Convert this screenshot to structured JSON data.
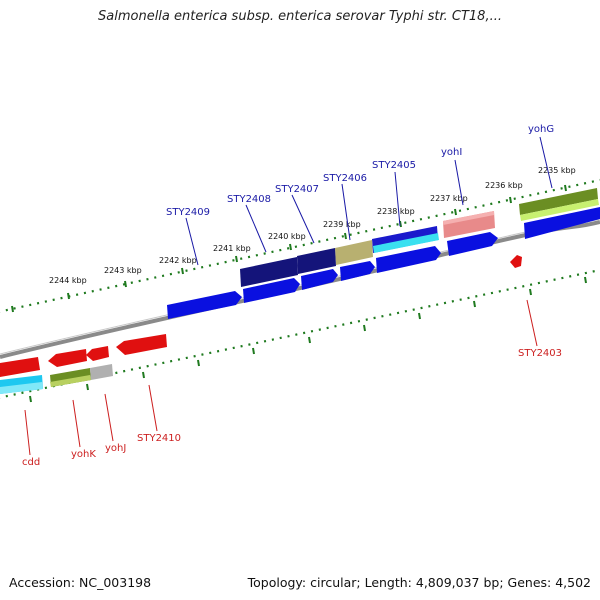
{
  "title": "Salmonella enterica subsp. enterica serovar Typhi str. CT18,...",
  "footer": {
    "accession": "Accession: NC_003198",
    "stats": "Topology: circular; Length: 4,809,037 bp; Genes: 4,502"
  },
  "colors": {
    "backbone": "#888888",
    "tick": "#1f7a1f",
    "forward_gene": "#0a10e0",
    "reverse_gene": "#e01010",
    "label_top": "#1a1aa6",
    "label_bottom": "#cc1f1f"
  },
  "scale_labels": [
    "2235 kbp",
    "2236 kbp",
    "2237 kbp",
    "2238 kbp",
    "2239 kbp",
    "2240 kbp",
    "2241 kbp",
    "2242 kbp",
    "2243 kbp",
    "2244 kbp"
  ],
  "top_labels": [
    "yohG",
    "yohI",
    "STY2405",
    "STY2406",
    "STY2407",
    "STY2408",
    "STY2409"
  ],
  "bottom_labels": [
    "STY2403",
    "STY2410",
    "yohJ",
    "yohK",
    "cdd"
  ]
}
